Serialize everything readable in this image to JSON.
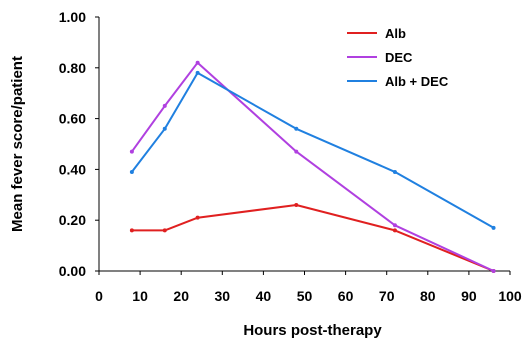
{
  "chart_data": {
    "type": "line",
    "xlabel": "Hours post-therapy",
    "ylabel": "Mean fever score/patient",
    "xlim": [
      0,
      100
    ],
    "ylim": [
      0,
      1.0
    ],
    "xticks": [
      "0",
      "10",
      "20",
      "30",
      "40",
      "50",
      "60",
      "70",
      "80",
      "90",
      "100"
    ],
    "yticks": [
      "0.00",
      "0.20",
      "0.40",
      "0.60",
      "0.80",
      "1.00"
    ],
    "grid": false,
    "legend_position": "top-right",
    "series": [
      {
        "name": "Alb",
        "color": "#e02020",
        "points": [
          [
            8,
            0.16
          ],
          [
            16,
            0.16
          ],
          [
            24,
            0.21
          ],
          [
            48,
            0.26
          ],
          [
            72,
            0.16
          ],
          [
            96,
            0.0
          ]
        ]
      },
      {
        "name": "DEC",
        "color": "#b040e0",
        "points": [
          [
            8,
            0.47
          ],
          [
            16,
            0.65
          ],
          [
            24,
            0.82
          ],
          [
            48,
            0.47
          ],
          [
            72,
            0.18
          ],
          [
            96,
            0.0
          ]
        ]
      },
      {
        "name": "Alb + DEC",
        "color": "#2080e0",
        "points": [
          [
            8,
            0.39
          ],
          [
            16,
            0.56
          ],
          [
            24,
            0.78
          ],
          [
            48,
            0.56
          ],
          [
            72,
            0.39
          ],
          [
            96,
            0.17
          ]
        ]
      }
    ]
  }
}
